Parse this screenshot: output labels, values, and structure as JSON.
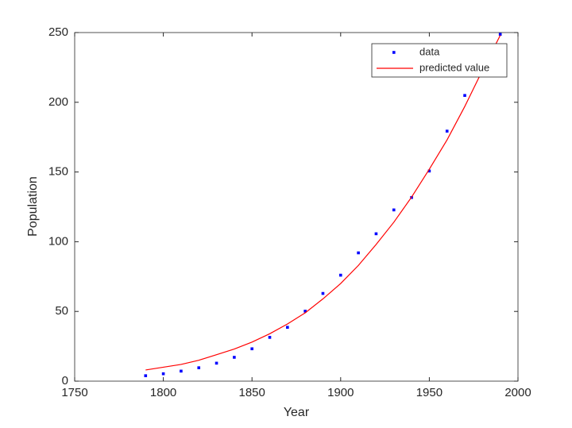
{
  "chart_data": {
    "type": "scatter-line",
    "x_label": "Year",
    "y_label": "Population",
    "xlim": [
      1750,
      2000
    ],
    "xticks": [
      1750,
      1800,
      1850,
      1900,
      1950,
      2000
    ],
    "ylim": [
      0,
      250
    ],
    "yticks": [
      0,
      50,
      100,
      150,
      200,
      250
    ],
    "legend": "top-right",
    "series": [
      {
        "name": "data",
        "color": "#0000ff",
        "style": "points",
        "x": [
          1790,
          1800,
          1810,
          1820,
          1830,
          1840,
          1850,
          1860,
          1870,
          1880,
          1890,
          1900,
          1910,
          1920,
          1930,
          1940,
          1950,
          1960,
          1970,
          1990
        ],
        "values": [
          3.9,
          5.3,
          7.2,
          9.6,
          12.9,
          17.1,
          23.2,
          31.4,
          38.6,
          50.2,
          62.9,
          76.0,
          92.0,
          105.7,
          122.8,
          131.7,
          150.7,
          179.3,
          204.9,
          248.7
        ]
      },
      {
        "name": "predicted value",
        "color": "#ff0000",
        "style": "line",
        "x": [
          1790,
          1800,
          1810,
          1820,
          1830,
          1840,
          1850,
          1860,
          1870,
          1880,
          1890,
          1900,
          1910,
          1920,
          1930,
          1940,
          1950,
          1960,
          1970,
          1980,
          1990
        ],
        "values": [
          8,
          10,
          12,
          15,
          19,
          23,
          28,
          34,
          41,
          49,
          59,
          70,
          83,
          98,
          114,
          132,
          152,
          173,
          197,
          223,
          248
        ]
      }
    ]
  }
}
